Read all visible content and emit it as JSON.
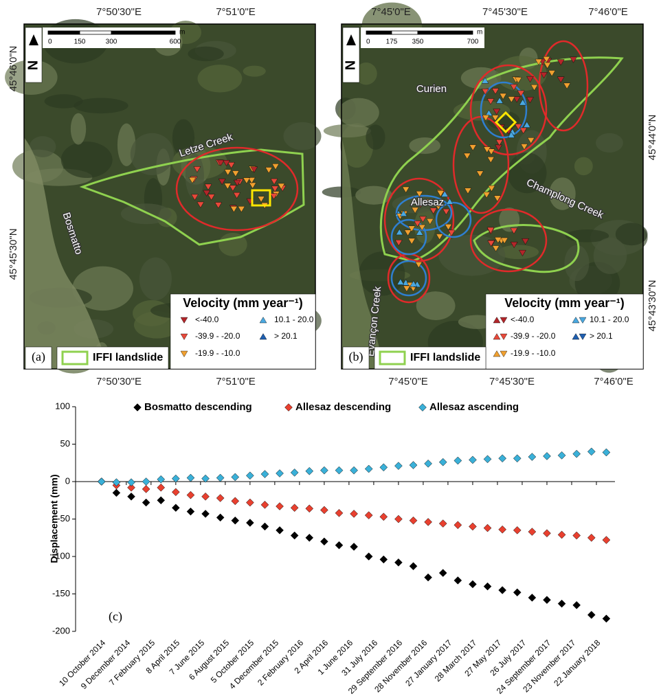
{
  "maps": [
    {
      "panel": "(a)",
      "north": "N",
      "top_ticks": [
        "7°50'30\"E",
        "7°51'0\"E"
      ],
      "bottom_ticks": [
        "7°50'30\"E",
        "7°51'0\"E"
      ],
      "side_ticks": [
        "45°46'0\"N",
        "45°45'30\"N"
      ],
      "scale_labels": [
        "0",
        "150",
        "300",
        "600"
      ],
      "scale_unit": "m",
      "places": [
        "Letze Creek",
        "Bosmatto"
      ],
      "legend_title": "Velocity (mm year⁻¹)",
      "legend_items": [
        "<-40.0",
        "-39.9 - -20.0",
        "-19.9 - -10.0",
        "10.1 - 20.0",
        "> 20.1"
      ],
      "iffi_label": "IFFI landslide"
    },
    {
      "panel": "(b)",
      "north": "N",
      "top_ticks": [
        "7°45'0\"E",
        "7°45'30\"E",
        "7°46'0\"E"
      ],
      "bottom_ticks": [
        "7°45'0\"E",
        "7°45'30\"E",
        "7°46'0\"E"
      ],
      "side_ticks": [
        "45°44'0\"N",
        "45°43'30\"N"
      ],
      "scale_labels": [
        "0",
        "175",
        "350",
        "700"
      ],
      "scale_unit": "m",
      "places": [
        "Curien",
        "Allesaz",
        "Champlong Creek",
        "Evançon Creek"
      ],
      "legend_title": "Velocity (mm year⁻¹)",
      "legend_items": [
        "<-40.0",
        "-39.9 - -20.0",
        "-19.9 - -10.0",
        "10.1 - 20.0",
        "> 20.1"
      ],
      "iffi_label": "IFFI landslide"
    }
  ],
  "chart_data": {
    "type": "scatter",
    "annotation": "(c)",
    "ylabel": "Displacement (mm)",
    "legend": "top",
    "x": [
      "2014-10-10",
      "2014-11-15",
      "2014-12-21",
      "2015-01-26",
      "2015-03-03",
      "2015-04-08",
      "2015-05-14",
      "2015-06-19",
      "2015-07-25",
      "2015-08-30",
      "2015-10-05",
      "2015-11-10",
      "2015-12-16",
      "2016-01-21",
      "2016-02-26",
      "2016-04-02",
      "2016-05-08",
      "2016-06-13",
      "2016-07-19",
      "2016-08-24",
      "2016-09-29",
      "2016-11-04",
      "2016-12-10",
      "2017-01-15",
      "2017-02-20",
      "2017-03-28",
      "2017-05-03",
      "2017-06-08",
      "2017-07-14",
      "2017-08-19",
      "2017-09-24",
      "2017-10-30",
      "2017-12-05",
      "2018-01-10",
      "2018-02-15"
    ],
    "series": [
      {
        "name": "Bosmatto descending",
        "color": "#000000",
        "values": [
          0,
          -15,
          -20,
          -28,
          -25,
          -35,
          -40,
          -43,
          -48,
          -52,
          -55,
          -60,
          -65,
          -72,
          -75,
          -80,
          -85,
          -87,
          -100,
          -104,
          -108,
          -113,
          -128,
          -122,
          -132,
          -137,
          -140,
          -145,
          -148,
          -155,
          -158,
          -163,
          -165,
          -178,
          -183
        ]
      },
      {
        "name": "Allesaz descending",
        "color": "#e8402f",
        "values": [
          0,
          -5,
          -8,
          -10,
          -8,
          -14,
          -18,
          -20,
          -22,
          -26,
          -28,
          -31,
          -33,
          -35,
          -36,
          -38,
          -42,
          -43,
          -45,
          -47,
          -50,
          -52,
          -54,
          -56,
          -58,
          -60,
          -62,
          -64,
          -65,
          -67,
          -69,
          -71,
          -72,
          -75,
          -78
        ]
      },
      {
        "name": "Allesaz ascending",
        "color": "#3ab0d8",
        "values": [
          0,
          -1,
          -1,
          0,
          3,
          4,
          5,
          4,
          5,
          6,
          8,
          10,
          11,
          12,
          14,
          15,
          15,
          15,
          17,
          19,
          21,
          22,
          24,
          26,
          28,
          29,
          30,
          31,
          31,
          33,
          34,
          35,
          37,
          40,
          39
        ]
      }
    ],
    "xlim": [
      "2014-08-08",
      "2018-03-08"
    ],
    "xticks": [
      {
        "value": "2014-10-10",
        "label": "10 October 2014"
      },
      {
        "value": "2014-12-09",
        "label": "9 December 2014"
      },
      {
        "value": "2015-02-07",
        "label": "7 February 2015"
      },
      {
        "value": "2015-04-08",
        "label": "8 April 2015"
      },
      {
        "value": "2015-06-07",
        "label": "7 June 2015"
      },
      {
        "value": "2015-08-06",
        "label": "6 August 2015"
      },
      {
        "value": "2015-10-05",
        "label": "5 October 2015"
      },
      {
        "value": "2015-12-04",
        "label": "4 December 2015"
      },
      {
        "value": "2016-02-02",
        "label": "2 February 2016"
      },
      {
        "value": "2016-04-02",
        "label": "2 April 2016"
      },
      {
        "value": "2016-06-01",
        "label": "1 June 2016"
      },
      {
        "value": "2016-07-31",
        "label": "31 July 2016"
      },
      {
        "value": "2016-09-29",
        "label": "29 September 2016"
      },
      {
        "value": "2016-11-28",
        "label": "28 November 2016"
      },
      {
        "value": "2017-01-27",
        "label": "27 January 2017"
      },
      {
        "value": "2017-03-28",
        "label": "28 March 2017"
      },
      {
        "value": "2017-05-27",
        "label": "27 May 2017"
      },
      {
        "value": "2017-07-26",
        "label": "26 July 2017"
      },
      {
        "value": "2017-09-24",
        "label": "24 September 2017"
      },
      {
        "value": "2017-11-23",
        "label": "23 November 2017"
      },
      {
        "value": "2018-01-22",
        "label": "22 January 2018"
      }
    ],
    "ylim": [
      -200,
      100
    ],
    "yticks": [
      -200,
      -150,
      -100,
      -50,
      0,
      50,
      100
    ]
  }
}
